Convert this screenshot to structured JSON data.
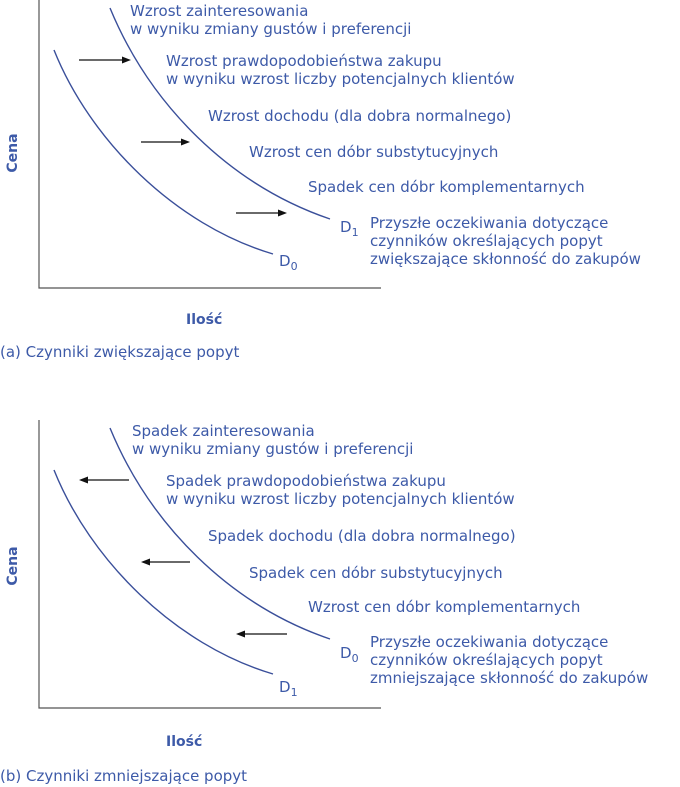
{
  "panels": [
    {
      "caption": "(a) Czynniki zwiększające popyt",
      "y_axis_label": "Cena",
      "x_axis_label": "Ilość",
      "direction": "right",
      "inner_curve": {
        "name": "D",
        "sub": "0"
      },
      "outer_curve": {
        "name": "D",
        "sub": "1"
      },
      "factors": [
        [
          "Wzrost zainteresowania",
          "w wyniku zmiany gustów i preferencji"
        ],
        [
          "Wzrost prawdopodobieństwa zakupu",
          "w wyniku wzrost liczby potencjalnych klientów"
        ],
        [
          "Wzrost dochodu (dla dobra normalnego)"
        ],
        [
          "Wzrost cen dóbr substytucyjnych"
        ],
        [
          "Spadek cen dóbr komplementarnych"
        ],
        [
          "Przyszłe oczekiwania dotyczące",
          "czynników określających popyt",
          "zwiększające skłonność do zakupów"
        ]
      ]
    },
    {
      "caption": "(b) Czynniki zmniejszające popyt",
      "y_axis_label": "Cena",
      "x_axis_label": "Ilość",
      "direction": "left",
      "inner_curve": {
        "name": "D",
        "sub": "1"
      },
      "outer_curve": {
        "name": "D",
        "sub": "0"
      },
      "factors": [
        [
          "Spadek zainteresowania",
          "w wyniku zmiany gustów i preferencji"
        ],
        [
          "Spadek prawdopodobieństwa zakupu",
          "w wyniku wzrost liczby potencjalnych klientów"
        ],
        [
          "Spadek dochodu (dla dobra normalnego)"
        ],
        [
          "Spadek cen dóbr substytucyjnych"
        ],
        [
          "Wzrost cen dóbr komplementarnych"
        ],
        [
          "Przyszłe oczekiwania dotyczące",
          "czynników określających popyt",
          "zmniejszające skłonność do zakupów"
        ]
      ]
    }
  ]
}
